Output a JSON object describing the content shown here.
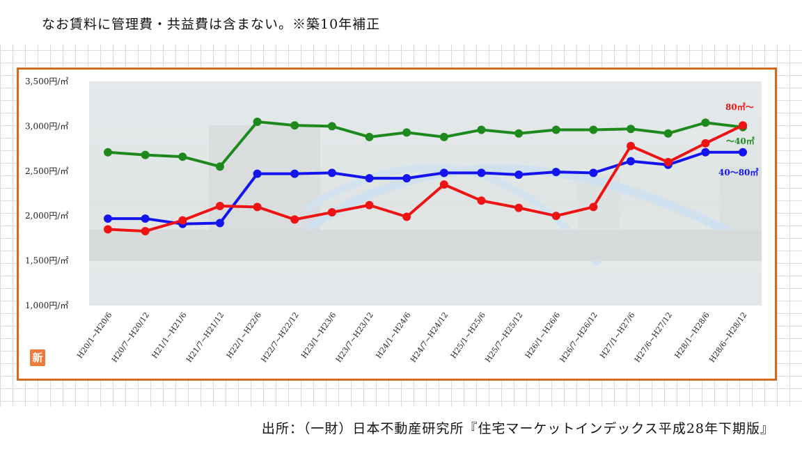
{
  "note": "なお賃料に管理費・共益費は含まない。※築10年補正",
  "source": "出所：（一財）日本不動産研究所『住宅マーケットインデックス平成28年下期版』",
  "badge": "新",
  "chart_data": {
    "type": "line",
    "ylim": [
      1000,
      3500
    ],
    "yticks": [
      {
        "value": 1000,
        "label": "1,000円/㎡"
      },
      {
        "value": 1500,
        "label": "1,500円/㎡"
      },
      {
        "value": 2000,
        "label": "2,000円/㎡"
      },
      {
        "value": 2500,
        "label": "2,500円/㎡"
      },
      {
        "value": 3000,
        "label": "3,000円/㎡"
      },
      {
        "value": 3500,
        "label": "3,500円/㎡"
      }
    ],
    "categories": [
      "H20/1~H20/6",
      "H20/7~H20/12",
      "H21/1~H21/6",
      "H21/7~H21/12",
      "H22/1~H22/6",
      "H22/7~H22/12",
      "H23/1~H23/6",
      "H23/7~H23/12",
      "H24/1~H24/6",
      "H24/7~H24/12",
      "H25/1~H25/6",
      "H25/7~H25/12",
      "H26/1~H26/6",
      "H26/7~H26/12",
      "H27/1~H27/6",
      "H27/6~H27/12",
      "H28/1~H28/6",
      "H28/6~H28/12"
    ],
    "series": [
      {
        "name": "～40㎡",
        "color": "#1e8a1e",
        "values": [
          2710,
          2680,
          2660,
          2550,
          3050,
          3010,
          3000,
          2880,
          2930,
          2880,
          2960,
          2920,
          2960,
          2960,
          2970,
          2920,
          3040,
          2990
        ]
      },
      {
        "name": "40～80㎡",
        "color": "#1414ee",
        "values": [
          1970,
          1970,
          1910,
          1920,
          2470,
          2470,
          2480,
          2420,
          2420,
          2480,
          2480,
          2460,
          2490,
          2480,
          2610,
          2570,
          2710,
          2710
        ]
      },
      {
        "name": "80㎡～",
        "color": "#ee1414",
        "values": [
          1850,
          1830,
          1950,
          2110,
          2100,
          1960,
          2040,
          2120,
          1990,
          2350,
          2170,
          2090,
          2000,
          2100,
          2780,
          2600,
          2810,
          3010
        ]
      }
    ],
    "grid": false,
    "legend_placement": "right, next to line ends"
  }
}
